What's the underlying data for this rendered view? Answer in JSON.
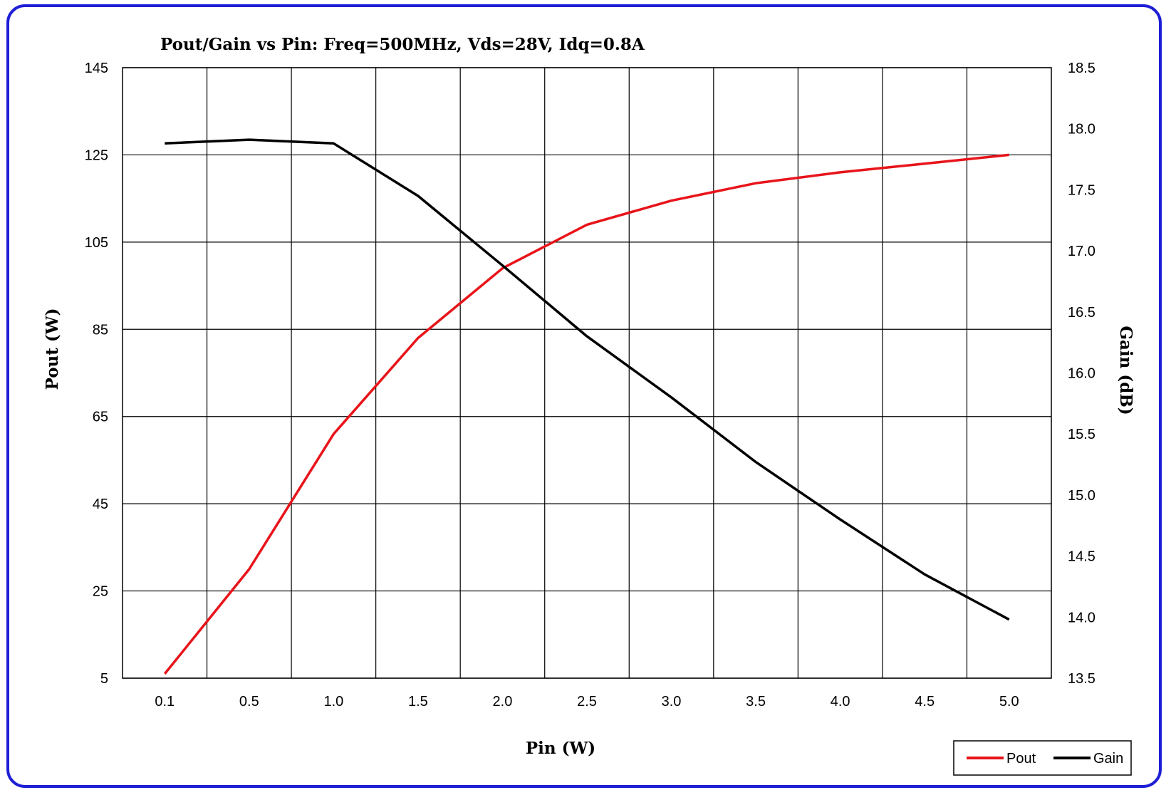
{
  "chart_data": {
    "type": "line",
    "title": "Pout/Gain vs Pin: Freq=500MHz,  Vds=28V, Idq=0.8A",
    "xlabel": "Pin (W)",
    "ylabel_left": "Pout (W)",
    "ylabel_right": "Gain (dB)",
    "categories": [
      "0.1",
      "0.5",
      "1.0",
      "1.5",
      "2.0",
      "2.5",
      "3.0",
      "3.5",
      "4.0",
      "4.5",
      "5.0"
    ],
    "ylim_left": [
      5,
      145
    ],
    "yticks_left": [
      "5",
      "25",
      "45",
      "65",
      "85",
      "105",
      "125",
      "145"
    ],
    "ylim_right": [
      13.5,
      18.5
    ],
    "yticks_right": [
      "13.5",
      "14.0",
      "14.5",
      "15.0",
      "15.5",
      "16.0",
      "16.5",
      "17.0",
      "17.5",
      "18.0",
      "18.5"
    ],
    "grid": true,
    "legend_position": "bottom-right",
    "series": [
      {
        "name": "Pout",
        "axis": "left",
        "color": "#e8141a",
        "values": [
          6,
          30,
          61,
          83,
          99,
          109,
          114.5,
          118.5,
          121,
          123,
          125
        ]
      },
      {
        "name": "Gain",
        "axis": "right",
        "color": "#000000",
        "values": [
          17.88,
          17.91,
          17.88,
          17.45,
          16.88,
          16.3,
          15.8,
          15.27,
          14.8,
          14.35,
          13.98
        ]
      }
    ]
  },
  "colors": {
    "frame_border": "#1f1fd6",
    "grid": "#000000"
  }
}
